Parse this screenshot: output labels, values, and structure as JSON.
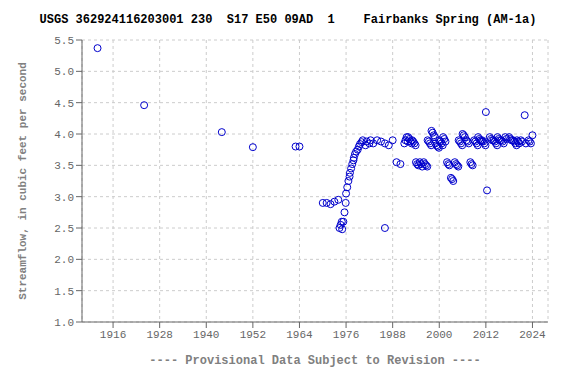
{
  "chart_data": {
    "type": "scatter",
    "title": "USGS 362924116203001 230  S17 E50 09AD  1    Fairbanks Spring (AM-1a)",
    "ylabel": "Streamflow, in cubic feet per second",
    "xlabel": "---- Provisional Data Subject to Revision ----",
    "color": "#0000cc",
    "grid": true,
    "xlim": [
      1908,
      2028
    ],
    "ylim": [
      1.0,
      5.5
    ],
    "xticks": [
      1916,
      1928,
      1940,
      1952,
      1964,
      1976,
      1988,
      2000,
      2012,
      2024
    ],
    "yticks": [
      {
        "value": 1.0,
        "label": "1.0"
      },
      1.5,
      {
        "value": 2.0,
        "label": "2.0"
      },
      2.5,
      {
        "value": 3.0,
        "label": "3.0"
      },
      3.5,
      {
        "value": 4.0,
        "label": "4.0"
      },
      4.5,
      {
        "value": 5.0,
        "label": "5.0"
      },
      5.5
    ],
    "x": [
      1912,
      1924,
      1944,
      1952,
      1963,
      1964,
      1970,
      1971,
      1972,
      1973,
      1974,
      1974.3,
      1974.6,
      1974.9,
      1975,
      1975.3,
      1975.6,
      1975.9,
      1976,
      1976.3,
      1976.6,
      1976.9,
      1977,
      1977.3,
      1977.6,
      1977.9,
      1978,
      1978.3,
      1978.6,
      1979,
      1979.3,
      1979.6,
      1980,
      1980.3,
      1981,
      1981.3,
      1982,
      1982.3,
      1983,
      1984,
      1985,
      1986,
      1987,
      1988,
      1989,
      1990,
      1986,
      1991,
      1991.3,
      1991.6,
      1991.9,
      1992,
      1992.3,
      1992.6,
      1992.9,
      1993,
      1993.3,
      1993.6,
      1993.9,
      1994,
      1994.3,
      1994.6,
      1995,
      1995.3,
      1995.6,
      1996,
      1996.3,
      1996.6,
      1996.9,
      1997,
      1997.3,
      1997.6,
      1997.9,
      1998,
      1998.3,
      1998.6,
      1998.9,
      1999,
      1999.3,
      1999.6,
      1999.9,
      2000,
      2000.3,
      2000.6,
      2000.9,
      2001,
      2001.3,
      2001.6,
      2002,
      2002.3,
      2002.6,
      2003,
      2003.3,
      2003.6,
      2004,
      2004.3,
      2004.6,
      2004.9,
      2005,
      2005.3,
      2005.6,
      2005.9,
      2006,
      2006.3,
      2006.6,
      2007,
      2007.3,
      2007.6,
      2008,
      2008.3,
      2008.6,
      2009,
      2009.3,
      2009.6,
      2009.9,
      2010,
      2010.3,
      2010.6,
      2010.9,
      2011,
      2011.3,
      2011.6,
      2011.9,
      2012,
      2012.3,
      2013,
      2013.3,
      2013.6,
      2014,
      2014.3,
      2014.6,
      2014.9,
      2015,
      2015.3,
      2015.6,
      2016,
      2016.3,
      2016.6,
      2017,
      2017.3,
      2018,
      2018.3,
      2018.6,
      2019,
      2019.3,
      2019.6,
      2019.9,
      2020,
      2020.3,
      2020.6,
      2021,
      2021.3,
      2022,
      2022.3,
      2023,
      2023.3,
      2023.6,
      2024
    ],
    "values": [
      5.37,
      4.46,
      4.03,
      3.79,
      3.8,
      3.8,
      2.9,
      2.9,
      2.88,
      2.92,
      2.95,
      2.5,
      2.55,
      2.6,
      2.48,
      2.6,
      2.75,
      2.9,
      3.05,
      3.15,
      3.25,
      3.32,
      3.38,
      3.45,
      3.52,
      3.58,
      3.62,
      3.68,
      3.72,
      3.75,
      3.8,
      3.84,
      3.87,
      3.9,
      3.82,
      3.88,
      3.85,
      3.9,
      3.85,
      3.9,
      3.88,
      3.85,
      3.82,
      3.9,
      3.55,
      3.52,
      2.5,
      3.85,
      3.9,
      3.95,
      3.88,
      3.95,
      3.92,
      3.88,
      3.85,
      3.9,
      3.88,
      3.85,
      3.82,
      3.55,
      3.52,
      3.5,
      3.55,
      3.52,
      3.48,
      3.55,
      3.52,
      3.5,
      3.48,
      3.9,
      3.88,
      3.85,
      3.82,
      4.05,
      4.02,
      3.98,
      3.95,
      3.85,
      3.82,
      3.8,
      3.78,
      3.9,
      3.88,
      3.85,
      3.82,
      3.95,
      3.92,
      3.88,
      3.55,
      3.52,
      3.5,
      3.3,
      3.28,
      3.25,
      3.55,
      3.52,
      3.5,
      3.48,
      3.9,
      3.88,
      3.85,
      3.82,
      4.0,
      3.98,
      3.95,
      3.9,
      3.88,
      3.85,
      3.55,
      3.52,
      3.5,
      3.9,
      3.88,
      3.85,
      3.82,
      3.95,
      3.92,
      3.9,
      3.88,
      3.9,
      3.88,
      3.85,
      3.82,
      4.35,
      3.1,
      3.95,
      3.92,
      3.9,
      3.9,
      3.88,
      3.85,
      3.82,
      3.95,
      3.92,
      3.9,
      3.9,
      3.88,
      3.85,
      3.95,
      3.92,
      3.95,
      3.92,
      3.9,
      3.9,
      3.88,
      3.85,
      3.82,
      3.9,
      3.88,
      3.85,
      3.9,
      3.88,
      4.3,
      3.85,
      3.9,
      3.88,
      3.85,
      3.98
    ]
  }
}
